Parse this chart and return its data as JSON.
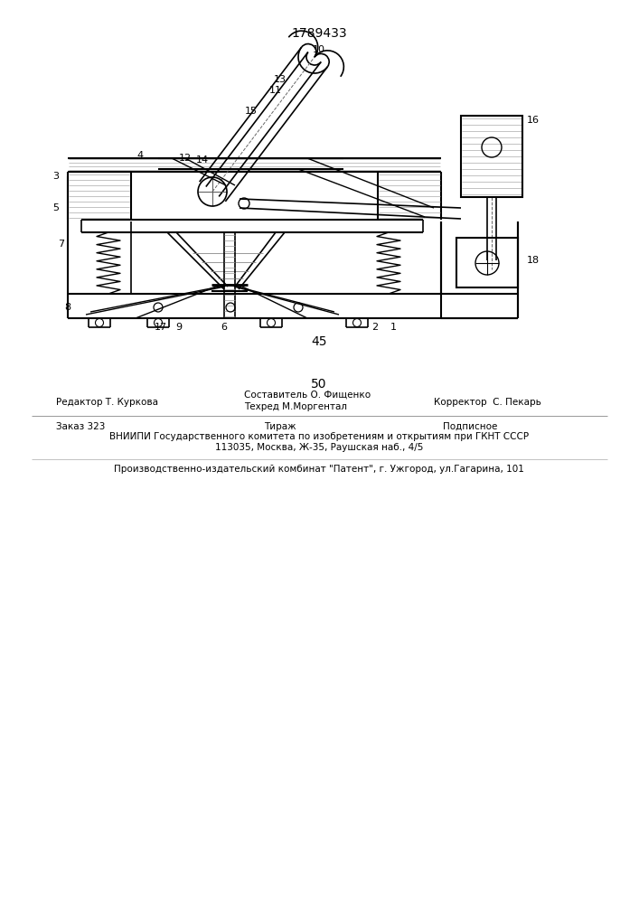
{
  "patent_number": "1789433",
  "page_45": "45",
  "page_50": "50",
  "editor": "Редактор Т. Куркова",
  "composer": "Составитель О. Фищенко",
  "techred": "Техред М.Моргентал",
  "corrector": "Корректор  С. Пекарь",
  "order": "Заказ 323",
  "tirazh": "Тираж",
  "podpisnoe": "Подписное",
  "vniip1": "ВНИИПИ Государственного комитета по изобретениям и открытиям при ГКНТ СССР",
  "vniip2": "113035, Москва, Ж-35, Раушская наб., 4/5",
  "production": "Производственно-издательский комбинат \"Патент\", г. Ужгород, ул.Гагарина, 101",
  "bg_color": "#ffffff",
  "lc": "#000000"
}
